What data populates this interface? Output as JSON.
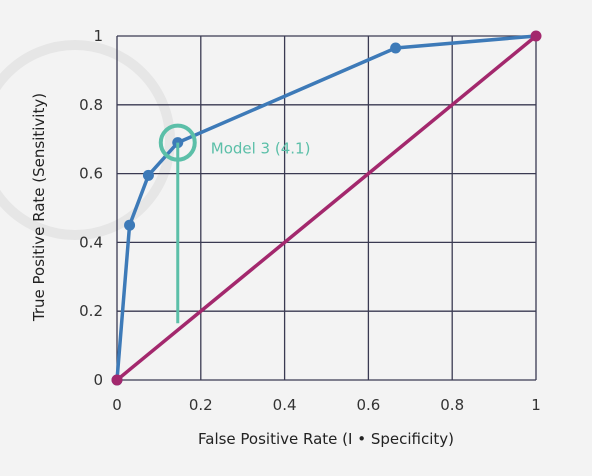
{
  "chart_data": {
    "type": "line",
    "xlabel": "False Positive Rate (I • Specificity)",
    "ylabel": "True Positive Rate (Sensitivity)",
    "xlim": [
      0,
      1
    ],
    "ylim": [
      0,
      1
    ],
    "x_ticks": [
      "0",
      "0.2",
      "0.4",
      "0.6",
      "0.8",
      "1"
    ],
    "y_ticks": [
      "0",
      "0.2",
      "0.4",
      "0.6",
      "0.8",
      "1"
    ],
    "grid": true,
    "series": [
      {
        "color": "#3d7ab8",
        "x": [
          0,
          0.03,
          0.075,
          0.145,
          0.665,
          1
        ],
        "y": [
          0,
          0.45,
          0.595,
          0.69,
          0.965,
          1
        ]
      },
      {
        "color": "#a3286d",
        "x": [
          0,
          1
        ],
        "y": [
          0,
          1
        ]
      }
    ],
    "annotations": [
      {
        "text": "Model 3 (4.1)",
        "x": 0.145,
        "y": 0.69,
        "color": "#5bbfa8"
      }
    ]
  }
}
